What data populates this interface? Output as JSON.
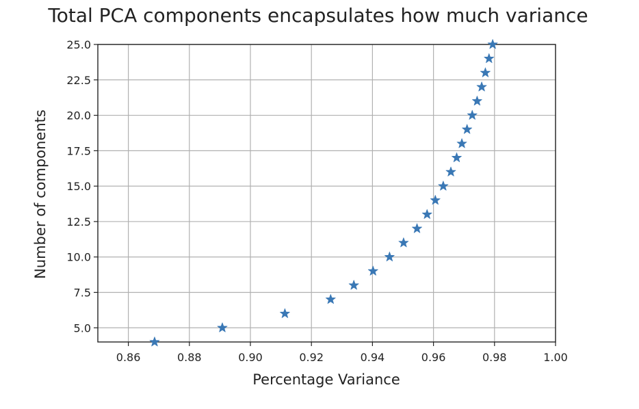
{
  "chart_data": {
    "type": "scatter",
    "title": "Total PCA components encapsulates how much variance",
    "xlabel": "Percentage Variance",
    "ylabel": "Number of components",
    "xlim": [
      0.85,
      1.0
    ],
    "ylim": [
      4.0,
      25.0
    ],
    "xticks": [
      0.86,
      0.88,
      0.9,
      0.92,
      0.94,
      0.96,
      0.98,
      1.0
    ],
    "xtick_labels": [
      "0.86",
      "0.88",
      "0.90",
      "0.92",
      "0.94",
      "0.96",
      "0.98",
      "1.00"
    ],
    "yticks": [
      5.0,
      7.5,
      10.0,
      12.5,
      15.0,
      17.5,
      20.0,
      22.5,
      25.0
    ],
    "ytick_labels": [
      "5.0",
      "7.5",
      "10.0",
      "12.5",
      "15.0",
      "17.5",
      "20.0",
      "22.5",
      "25.0"
    ],
    "grid": true,
    "marker": "star",
    "marker_color": "#3a78b5",
    "x": [
      0.8686,
      0.8908,
      0.9113,
      0.9263,
      0.9339,
      0.9402,
      0.9456,
      0.9502,
      0.9546,
      0.9579,
      0.9606,
      0.9632,
      0.9657,
      0.9676,
      0.9693,
      0.971,
      0.9727,
      0.9743,
      0.9758,
      0.977,
      0.9782,
      0.9794
    ],
    "y": [
      4,
      5,
      6,
      7,
      8,
      9,
      10,
      11,
      12,
      13,
      14,
      15,
      16,
      17,
      18,
      19,
      20,
      21,
      22,
      23,
      24,
      25
    ]
  }
}
